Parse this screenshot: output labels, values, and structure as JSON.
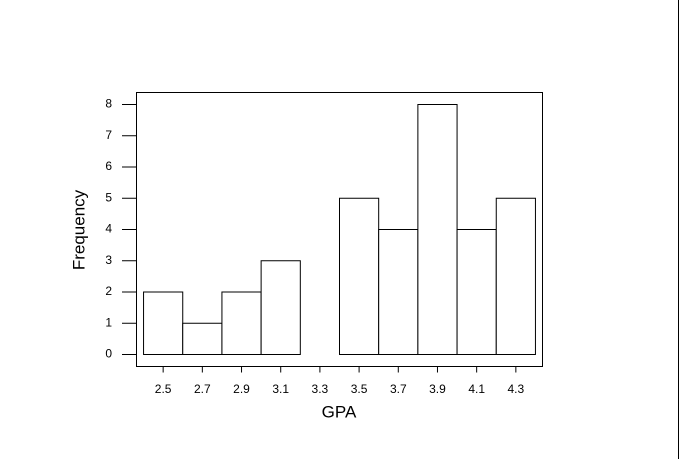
{
  "chart_data": {
    "type": "histogram",
    "xlabel": "GPA",
    "ylabel": "Frequency",
    "bins": [
      2.4,
      2.6,
      2.8,
      3.0,
      3.2,
      3.4,
      3.6,
      3.8,
      4.0,
      4.2,
      4.4
    ],
    "values": [
      2,
      1,
      2,
      3,
      0,
      5,
      4,
      8,
      4,
      5
    ],
    "color": "#ffffff",
    "xlim": [
      2.364,
      4.436
    ],
    "xticks": [
      2.5,
      2.7,
      2.9,
      3.1,
      3.3,
      3.5,
      3.7,
      3.9,
      4.1,
      4.3
    ],
    "ylim": [
      -0.384,
      8.384
    ],
    "yticks": [
      0,
      1,
      2,
      3,
      4,
      5,
      6,
      7,
      8
    ]
  }
}
